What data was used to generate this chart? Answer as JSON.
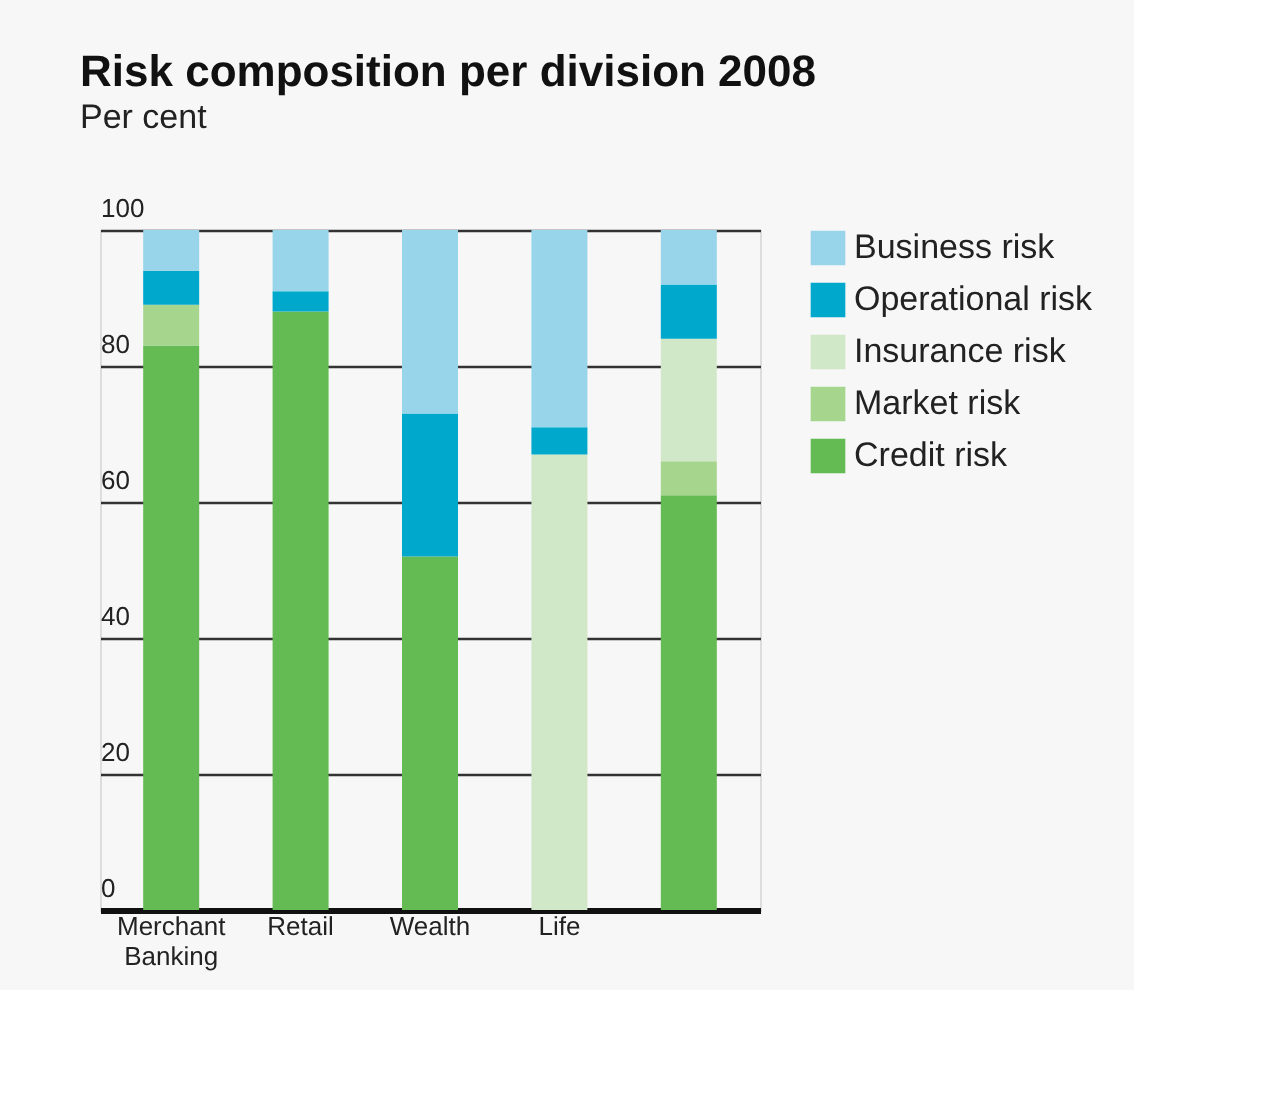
{
  "chart_data": {
    "type": "bar",
    "title": "Risk composition per division 2008",
    "subtitle": "Per cent",
    "categories": [
      "Merchant Banking",
      "Retail",
      "Wealth",
      "Life",
      null
    ],
    "stacked": true,
    "series": [
      {
        "name": "Credit risk",
        "color": "#64bb53",
        "values": [
          83,
          88,
          52,
          0,
          61
        ]
      },
      {
        "name": "Market risk",
        "color": "#a6d58e",
        "values": [
          6,
          0,
          0,
          0,
          5
        ]
      },
      {
        "name": "Insurance risk",
        "color": "#d0e8c8",
        "values": [
          0,
          0,
          0,
          67,
          18
        ]
      },
      {
        "name": "Operational risk",
        "color": "#00a8cc",
        "values": [
          5,
          3,
          21,
          4,
          8
        ]
      },
      {
        "name": "Business risk",
        "color": "#99d5ea",
        "values": [
          6,
          9,
          27,
          29,
          8
        ]
      }
    ],
    "ylim": [
      0,
      100
    ],
    "yticks": [
      0,
      20,
      40,
      60,
      80,
      100
    ],
    "grid": "y",
    "legend": "right"
  }
}
